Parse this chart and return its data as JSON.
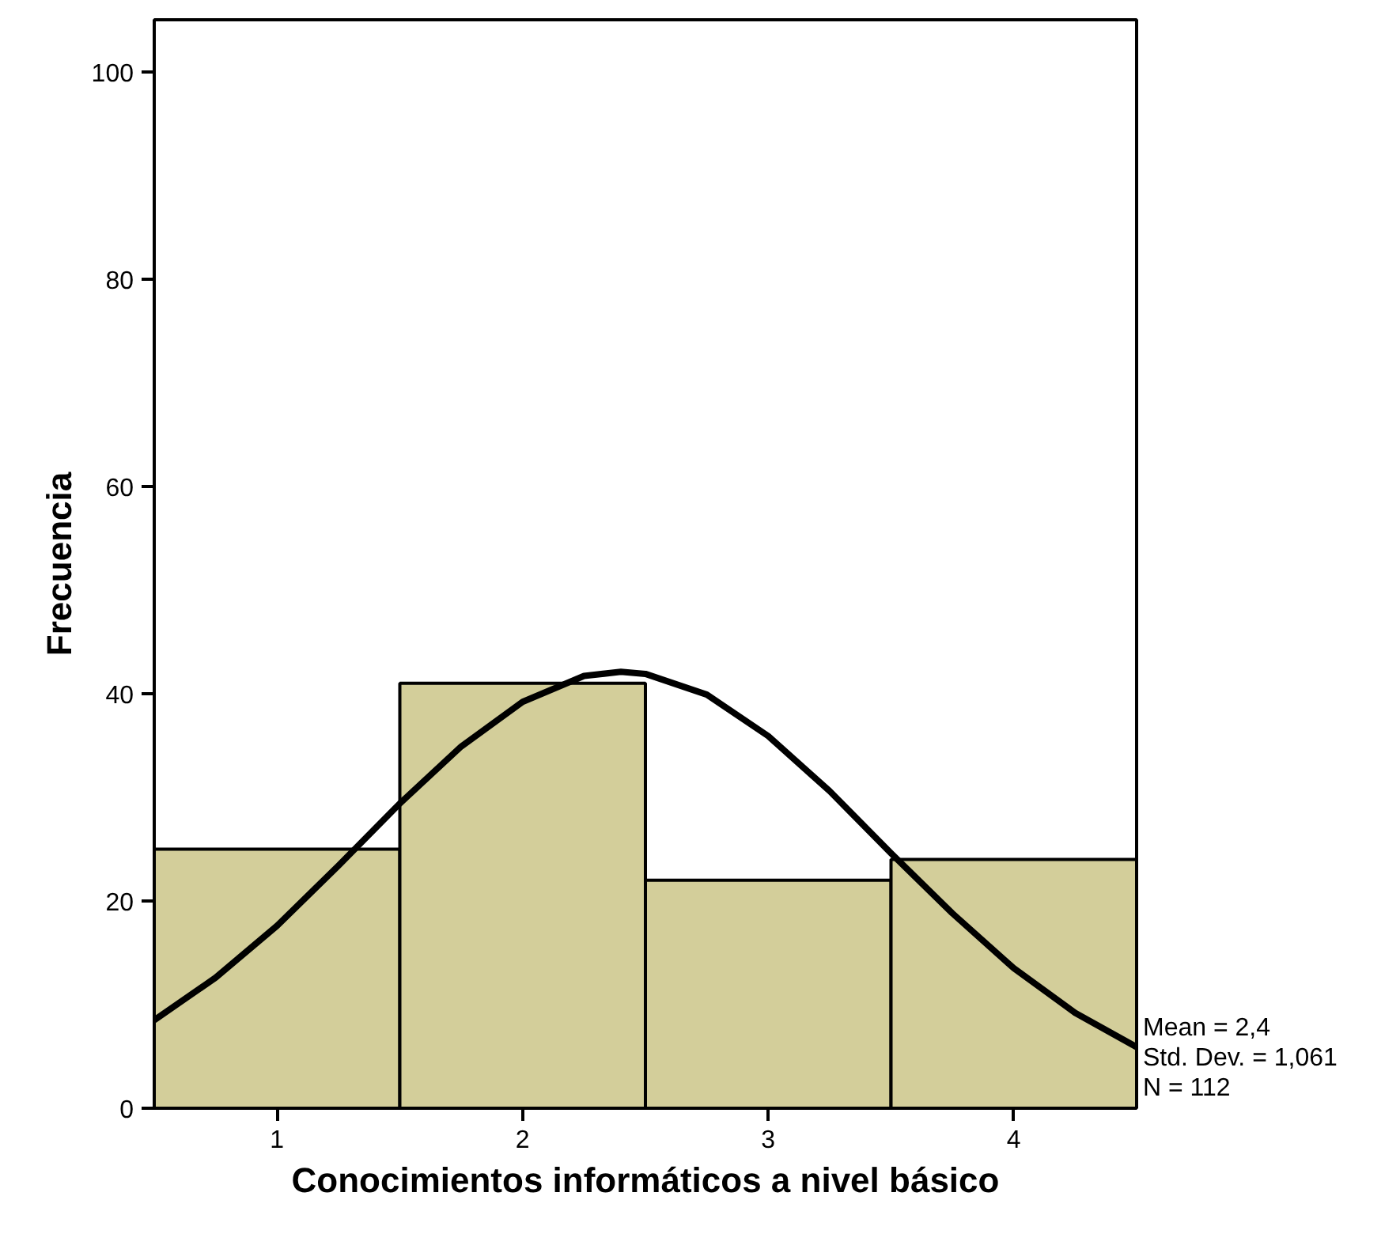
{
  "chart_data": {
    "type": "histogram",
    "xlabel": "Conocimientos informáticos a nivel básico",
    "ylabel": "Frecuencia",
    "bins": [
      0.5,
      1.5,
      2.5,
      3.5,
      4.5
    ],
    "values": [
      25,
      41,
      22,
      24
    ],
    "color": "#d3ce9a",
    "series": [
      {
        "type": "line",
        "color": "#000000",
        "x": [
          0.5,
          0.75,
          1.0,
          1.25,
          1.5,
          1.75,
          2.0,
          2.25,
          2.4,
          2.5,
          2.75,
          3.0,
          3.25,
          3.5,
          3.75,
          4.0,
          4.25,
          4.5
        ],
        "values": [
          8.5,
          12.6,
          17.6,
          23.4,
          29.4,
          34.9,
          39.2,
          41.7,
          42.1,
          41.9,
          39.9,
          35.9,
          30.6,
          24.6,
          18.8,
          13.5,
          9.2,
          5.9
        ]
      }
    ],
    "xlim": [
      0.5,
      4.5
    ],
    "ylim": [
      0,
      105
    ],
    "xticks": [
      1,
      2,
      3,
      4
    ],
    "yticks": [
      0,
      20,
      40,
      60,
      80,
      100
    ],
    "grid": false,
    "annotations": [
      "Mean = 2,4",
      "Std. Dev. = 1,061",
      "N = 112"
    ]
  }
}
